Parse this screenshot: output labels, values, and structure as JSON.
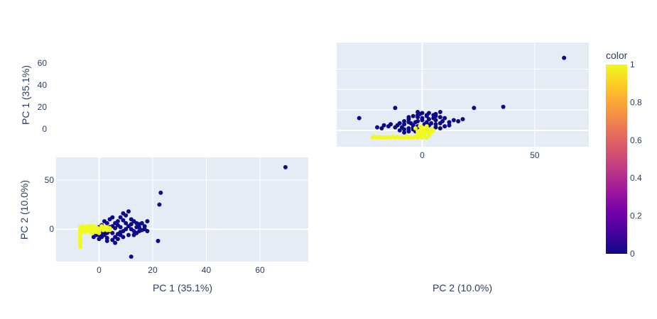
{
  "chart_data": [
    {
      "type": "scatter",
      "panel": "bottom-left",
      "xlabel": "PC 1 (35.1%)",
      "ylabel": "PC 2 (10.0%)",
      "xlim": [
        -16,
        78
      ],
      "ylim": [
        -33,
        73
      ],
      "xticks": [
        0,
        20,
        40,
        60
      ],
      "yticks": [
        0,
        50
      ],
      "grid": true,
      "series": [
        {
          "color_value": 0,
          "points": [
            [
              69.5,
              63
            ],
            [
              23,
              37
            ],
            [
              22.5,
              25
            ],
            [
              22,
              -12
            ],
            [
              12,
              -28
            ],
            [
              18,
              -2
            ],
            [
              17,
              0
            ],
            [
              15,
              2
            ],
            [
              14,
              6
            ],
            [
              12,
              10
            ],
            [
              10,
              14
            ],
            [
              9,
              9
            ],
            [
              8,
              12
            ],
            [
              7,
              8
            ],
            [
              6,
              6
            ],
            [
              5,
              3
            ],
            [
              4,
              -2
            ],
            [
              3,
              -4
            ],
            [
              2,
              -6
            ],
            [
              1,
              -8
            ],
            [
              0,
              -10
            ],
            [
              -1,
              -6
            ],
            [
              1,
              4
            ],
            [
              3,
              6
            ],
            [
              5,
              -4
            ],
            [
              6,
              -8
            ],
            [
              7,
              -10
            ],
            [
              8,
              -6
            ],
            [
              9,
              -2
            ],
            [
              10,
              0
            ],
            [
              11,
              3
            ],
            [
              12,
              5
            ],
            [
              13,
              8
            ],
            [
              14,
              -4
            ],
            [
              15,
              -2
            ],
            [
              16,
              -1
            ],
            [
              4,
              10
            ],
            [
              2,
              8
            ],
            [
              0,
              2
            ],
            [
              -1,
              -3
            ],
            [
              3,
              -12
            ],
            [
              6,
              -14
            ],
            [
              8,
              -3
            ],
            [
              11,
              -6
            ],
            [
              13,
              -2
            ],
            [
              16,
              6
            ],
            [
              18,
              8
            ],
            [
              5,
              12
            ],
            [
              9,
              16
            ],
            [
              11,
              18
            ],
            [
              7,
              4
            ],
            [
              2,
              -2
            ],
            [
              4,
              2
            ],
            [
              6,
              1
            ],
            [
              8,
              2
            ],
            [
              10,
              6
            ],
            [
              12,
              0
            ],
            [
              14,
              2
            ],
            [
              3,
              -9
            ],
            [
              5,
              -11
            ],
            [
              1,
              -4
            ],
            [
              0,
              -6
            ],
            [
              -2,
              -8
            ],
            [
              7,
              -5
            ],
            [
              9,
              -8
            ],
            [
              13,
              -6
            ],
            [
              15,
              5
            ],
            [
              17,
              3
            ]
          ]
        },
        {
          "color_value": 1,
          "points": [
            [
              -7,
              -18
            ],
            [
              -7,
              -15
            ],
            [
              -7,
              -12
            ],
            [
              -7,
              -10
            ],
            [
              -7,
              -8
            ],
            [
              -7,
              -6
            ],
            [
              -7,
              -4
            ],
            [
              -7,
              -2
            ],
            [
              -7,
              0
            ],
            [
              -7,
              2
            ],
            [
              -6.8,
              1
            ],
            [
              -6.5,
              -1
            ],
            [
              -6,
              0
            ],
            [
              -5.5,
              1
            ],
            [
              -5,
              -1
            ],
            [
              -4.5,
              0
            ],
            [
              -4,
              2
            ],
            [
              -3.5,
              -2
            ],
            [
              -3,
              1
            ],
            [
              -2.5,
              0
            ],
            [
              -2,
              -3
            ],
            [
              -1.5,
              2
            ],
            [
              -1,
              0
            ],
            [
              -0.5,
              1
            ],
            [
              0,
              -2
            ],
            [
              0.5,
              0
            ],
            [
              1,
              2
            ],
            [
              1.5,
              -1
            ],
            [
              2,
              0
            ],
            [
              2.5,
              1
            ],
            [
              3,
              -1
            ],
            [
              3.5,
              0
            ],
            [
              4,
              1
            ],
            [
              -5,
              -3
            ],
            [
              -3,
              -4
            ],
            [
              -1,
              -3
            ],
            [
              1,
              3
            ],
            [
              3,
              2
            ],
            [
              -6,
              3
            ],
            [
              -4,
              3
            ],
            [
              -2,
              3
            ],
            [
              0,
              -4
            ],
            [
              -6,
              -2
            ],
            [
              -5,
              2
            ],
            [
              -3,
              3
            ],
            [
              -1,
              -2
            ],
            [
              2,
              2
            ],
            [
              4,
              -1
            ]
          ]
        }
      ]
    },
    {
      "type": "scatter",
      "panel": "top-right",
      "xlabel": "PC 2 (10.0%)",
      "ylabel": "",
      "xlim": [
        -38,
        74
      ],
      "ylim": [
        -16,
        86
      ],
      "xticks": [
        0,
        50
      ],
      "yticks": [
        0,
        20,
        40,
        60
      ],
      "grid": true,
      "series": [
        {
          "color_value": 0,
          "points": [
            [
              63,
              71
            ],
            [
              36,
              23
            ],
            [
              23,
              22
            ],
            [
              -12,
              22
            ],
            [
              -28,
              12
            ],
            [
              -2,
              18
            ],
            [
              0,
              17
            ],
            [
              2,
              15
            ],
            [
              6,
              14
            ],
            [
              10,
              12
            ],
            [
              14,
              10
            ],
            [
              9,
              9
            ],
            [
              12,
              8
            ],
            [
              8,
              7
            ],
            [
              6,
              6
            ],
            [
              3,
              5
            ],
            [
              -2,
              4
            ],
            [
              -4,
              3
            ],
            [
              -6,
              2
            ],
            [
              -8,
              1
            ],
            [
              -10,
              0
            ],
            [
              -6,
              -1
            ],
            [
              4,
              1
            ],
            [
              6,
              3
            ],
            [
              -4,
              5
            ],
            [
              -8,
              6
            ],
            [
              -10,
              7
            ],
            [
              -6,
              8
            ],
            [
              -2,
              9
            ],
            [
              0,
              10
            ],
            [
              3,
              11
            ],
            [
              5,
              12
            ],
            [
              8,
              13
            ],
            [
              -4,
              14
            ],
            [
              -2,
              15
            ],
            [
              -1,
              16
            ],
            [
              10,
              4
            ],
            [
              8,
              2
            ],
            [
              2,
              0
            ],
            [
              -3,
              -1
            ],
            [
              -12,
              3
            ],
            [
              -14,
              6
            ],
            [
              -3,
              8
            ],
            [
              -6,
              11
            ],
            [
              -2,
              13
            ],
            [
              6,
              16
            ],
            [
              8,
              18
            ],
            [
              12,
              5
            ],
            [
              16,
              9
            ],
            [
              18,
              11
            ],
            [
              4,
              7
            ],
            [
              -2,
              2
            ],
            [
              2,
              4
            ],
            [
              1,
              6
            ],
            [
              2,
              8
            ],
            [
              6,
              10
            ],
            [
              0,
              12
            ],
            [
              2,
              14
            ],
            [
              -9,
              3
            ],
            [
              -11,
              5
            ],
            [
              -4,
              1
            ],
            [
              -6,
              0
            ],
            [
              -8,
              -2
            ],
            [
              -5,
              7
            ],
            [
              -8,
              9
            ],
            [
              -6,
              13
            ],
            [
              5,
              15
            ],
            [
              3,
              17
            ],
            [
              -15,
              4
            ],
            [
              -18,
              2
            ],
            [
              -20,
              3
            ],
            [
              -17,
              5
            ]
          ]
        },
        {
          "color_value": 1,
          "points": [
            [
              -20,
              -7
            ],
            [
              -18,
              -7
            ],
            [
              -16,
              -7
            ],
            [
              -14,
              -7
            ],
            [
              -12,
              -7
            ],
            [
              -10,
              -7
            ],
            [
              -8,
              -7
            ],
            [
              -6,
              -7
            ],
            [
              -4,
              -7
            ],
            [
              -2,
              -7
            ],
            [
              0,
              -7
            ],
            [
              2,
              -7
            ],
            [
              -22,
              -7
            ],
            [
              -21,
              -6
            ],
            [
              -19,
              -6.5
            ],
            [
              -17,
              -6.8
            ],
            [
              -15,
              -6.5
            ],
            [
              -13,
              -6
            ],
            [
              -11,
              -6.5
            ],
            [
              -9,
              -6.8
            ],
            [
              -7,
              -6
            ],
            [
              -5,
              -6.5
            ],
            [
              -3,
              -6
            ],
            [
              -1,
              -5
            ],
            [
              0,
              -4
            ],
            [
              1,
              -3
            ],
            [
              2,
              -2
            ],
            [
              0,
              -1
            ],
            [
              -1,
              0
            ],
            [
              1,
              1
            ],
            [
              3,
              0
            ],
            [
              2,
              2
            ],
            [
              0,
              3
            ],
            [
              -2,
              -3
            ],
            [
              3,
              -4
            ],
            [
              4,
              -2
            ],
            [
              5,
              0
            ],
            [
              -1,
              4
            ],
            [
              1,
              -6
            ],
            [
              3,
              -5
            ],
            [
              2,
              4
            ],
            [
              -2,
              -1
            ],
            [
              0,
              -2
            ],
            [
              4,
              1
            ],
            [
              -3,
              2
            ]
          ]
        }
      ]
    }
  ],
  "colorbar": {
    "title": "color",
    "ticks": [
      "0",
      "0.2",
      "0.4",
      "0.6",
      "0.8",
      "1"
    ],
    "min": 0,
    "max": 1,
    "colors": [
      "#0d0887",
      "#46039f",
      "#7201a8",
      "#9c179e",
      "#bd3786",
      "#d8576b",
      "#ed7953",
      "#fb9f3a",
      "#fdca26",
      "#f0f921"
    ]
  },
  "orphan_axis": {
    "ylabel": "PC 1 (35.1%)",
    "yticks": [
      "60",
      "40",
      "20",
      "0"
    ]
  },
  "style": {
    "plot_bg": "#e5ecf6",
    "grid_color": "#ffffff",
    "text_color": "#2a3f5f",
    "low_color": "#0d0887",
    "high_color": "#f0f921"
  }
}
